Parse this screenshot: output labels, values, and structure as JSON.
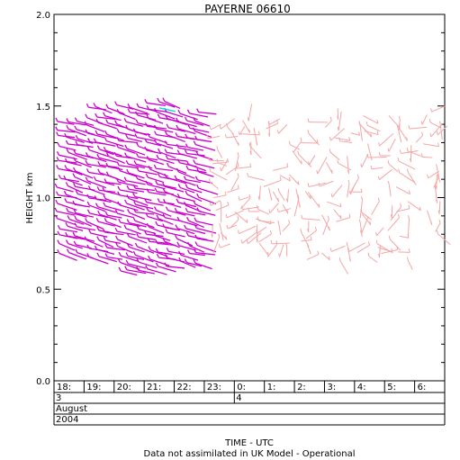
{
  "chart_data": {
    "type": "scatter",
    "title": "PAYERNE 06610",
    "ylabel": "HEIGHT km",
    "xlabel": "TIME - UTC",
    "footnote": "Data not assimilated in UK Model - Operational",
    "ylim": [
      0.0,
      2.0
    ],
    "yticks": [
      {
        "value": 0.0,
        "label": "0.0"
      },
      {
        "value": 0.5,
        "label": "0.5"
      },
      {
        "value": 1.0,
        "label": "1.0"
      },
      {
        "value": 1.5,
        "label": "1.5"
      },
      {
        "value": 2.0,
        "label": "2.0"
      }
    ],
    "xlim": [
      17.5,
      30.5
    ],
    "time_labels": [
      "18:",
      "19:",
      "20:",
      "21:",
      "22:",
      "23:",
      "0:",
      "1:",
      "2:",
      "3:",
      "4:",
      "5:",
      "6:"
    ],
    "day_labels": [
      {
        "hour": 17.5,
        "label": "3"
      },
      {
        "hour": 24,
        "label": "4"
      }
    ],
    "month_label": "August",
    "year_label": "2004",
    "colors": {
      "pink": "#f4a6a6",
      "magenta": "#cc00cc",
      "cyan": "#00dddd"
    },
    "wind_profiles": [
      {
        "time": 18.0,
        "hmin": 0.7,
        "hmax": 1.45,
        "color": "magenta"
      },
      {
        "time": 19.0,
        "hmin": 0.68,
        "hmax": 1.5,
        "color": "magenta"
      },
      {
        "time": 20.0,
        "hmin": 0.6,
        "hmax": 1.5,
        "color": "magenta"
      },
      {
        "time": 21.0,
        "hmin": 0.62,
        "hmax": 1.52,
        "color": "magenta"
      },
      {
        "time": 22.0,
        "hmin": 0.65,
        "hmax": 1.5,
        "color": "magenta"
      },
      {
        "time": 23.0,
        "hmin": 0.72,
        "hmax": 1.4,
        "color": "pink"
      },
      {
        "time": 24.0,
        "hmin": 0.75,
        "hmax": 1.42,
        "color": "pink"
      },
      {
        "time": 25.0,
        "hmin": 0.68,
        "hmax": 1.45,
        "color": "pink"
      },
      {
        "time": 26.0,
        "hmin": 0.7,
        "hmax": 1.45,
        "color": "pink"
      },
      {
        "time": 27.0,
        "hmin": 0.65,
        "hmax": 1.48,
        "color": "pink"
      },
      {
        "time": 28.0,
        "hmin": 0.68,
        "hmax": 1.45,
        "color": "pink"
      },
      {
        "time": 29.0,
        "hmin": 0.65,
        "hmax": 1.45,
        "color": "pink"
      },
      {
        "time": 30.0,
        "hmin": 0.8,
        "hmax": 1.5,
        "color": "pink"
      }
    ]
  }
}
